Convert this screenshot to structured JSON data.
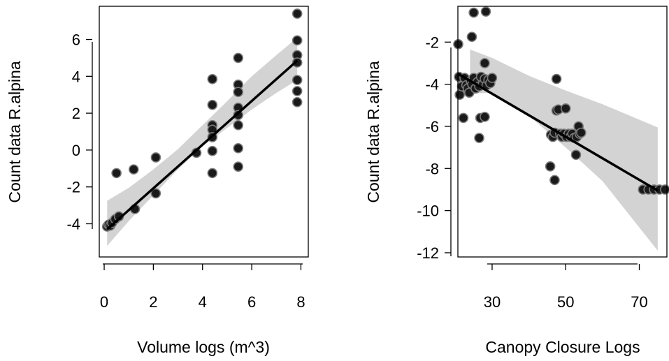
{
  "chart_data": [
    {
      "type": "scatter",
      "title": "",
      "xlabel": "Volume logs (m^3)",
      "ylabel": "Count data R.alpina",
      "xlim": [
        -0.2,
        8.3
      ],
      "ylim": [
        -5.8,
        7.8
      ],
      "xticks": [
        0,
        2,
        4,
        6,
        8
      ],
      "yticks": [
        -4,
        -2,
        0,
        2,
        4,
        6
      ],
      "grid": false,
      "legend": "none",
      "colors": {
        "point_fill": "#1a1a1a",
        "point_stroke": "#7a7a7a",
        "line": "#000000",
        "band": "#d3d3d3"
      },
      "points": [
        {
          "x": 0.12,
          "y": -4.15
        },
        {
          "x": 0.18,
          "y": -4.05
        },
        {
          "x": 0.25,
          "y": -4.1
        },
        {
          "x": 0.32,
          "y": -3.95
        },
        {
          "x": 0.45,
          "y": -3.75
        },
        {
          "x": 0.6,
          "y": -3.6
        },
        {
          "x": 0.5,
          "y": -1.25
        },
        {
          "x": 1.2,
          "y": -1.05
        },
        {
          "x": 1.25,
          "y": -3.2
        },
        {
          "x": 2.1,
          "y": -0.4
        },
        {
          "x": 2.1,
          "y": -2.35
        },
        {
          "x": 3.75,
          "y": -0.15
        },
        {
          "x": 4.4,
          "y": 3.85
        },
        {
          "x": 4.4,
          "y": 2.45
        },
        {
          "x": 4.4,
          "y": 1.35
        },
        {
          "x": 4.4,
          "y": 1.1
        },
        {
          "x": 4.4,
          "y": 0.7
        },
        {
          "x": 4.4,
          "y": -0.05
        },
        {
          "x": 4.4,
          "y": -1.25
        },
        {
          "x": 5.45,
          "y": 5.0
        },
        {
          "x": 5.45,
          "y": 3.55
        },
        {
          "x": 5.45,
          "y": 3.15
        },
        {
          "x": 5.45,
          "y": 2.3
        },
        {
          "x": 5.45,
          "y": 1.9
        },
        {
          "x": 5.45,
          "y": 1.35
        },
        {
          "x": 5.45,
          "y": 0.1
        },
        {
          "x": 5.45,
          "y": -0.9
        },
        {
          "x": 7.85,
          "y": 7.4
        },
        {
          "x": 7.85,
          "y": 5.95
        },
        {
          "x": 7.85,
          "y": 5.15
        },
        {
          "x": 7.85,
          "y": 4.75
        },
        {
          "x": 7.85,
          "y": 3.8
        },
        {
          "x": 7.85,
          "y": 3.2
        },
        {
          "x": 7.85,
          "y": 2.6
        }
      ],
      "fit_line": [
        {
          "x": 0.12,
          "y": -4.3
        },
        {
          "x": 7.85,
          "y": 4.85
        }
      ],
      "confidence_band": {
        "x": [
          0.12,
          1.0,
          2.0,
          3.0,
          4.0,
          5.0,
          6.0,
          7.0,
          7.85
        ],
        "lower": [
          -5.2,
          -3.85,
          -2.45,
          -1.05,
          0.2,
          1.2,
          2.2,
          3.1,
          3.8
        ],
        "upper": [
          -2.75,
          -2.05,
          -1.05,
          0.05,
          1.35,
          2.65,
          4.0,
          5.15,
          6.1
        ]
      }
    },
    {
      "type": "scatter",
      "title": "",
      "xlabel": "Canopy Closure Logs",
      "ylabel": "Count data R.alpina",
      "xlim": [
        20.7,
        77.5
      ],
      "ylim": [
        -12.2,
        -0.3
      ],
      "xticks": [
        30,
        50,
        70
      ],
      "yticks": [
        -12,
        -10,
        -8,
        -6,
        -4,
        -2
      ],
      "grid": false,
      "legend": "none",
      "colors": {
        "point_fill": "#1a1a1a",
        "point_stroke": "#7a7a7a",
        "line": "#000000",
        "band": "#d3d3d3"
      },
      "points": [
        {
          "x": 20.8,
          "y": -2.1
        },
        {
          "x": 21.0,
          "y": -3.65
        },
        {
          "x": 21.2,
          "y": -4.5
        },
        {
          "x": 21.8,
          "y": -4.1
        },
        {
          "x": 22.2,
          "y": -5.6
        },
        {
          "x": 22.5,
          "y": -3.7
        },
        {
          "x": 23.0,
          "y": -4.05
        },
        {
          "x": 23.4,
          "y": -4.2
        },
        {
          "x": 23.8,
          "y": -4.4
        },
        {
          "x": 24.2,
          "y": -3.85
        },
        {
          "x": 24.6,
          "y": -4.0
        },
        {
          "x": 25.0,
          "y": -3.7
        },
        {
          "x": 25.5,
          "y": -4.2
        },
        {
          "x": 26.0,
          "y": -3.9
        },
        {
          "x": 26.5,
          "y": -4.1
        },
        {
          "x": 27.0,
          "y": -3.65
        },
        {
          "x": 27.5,
          "y": -4.0
        },
        {
          "x": 28.0,
          "y": -3.75
        },
        {
          "x": 28.5,
          "y": -4.05
        },
        {
          "x": 29.0,
          "y": -3.8
        },
        {
          "x": 29.5,
          "y": -3.95
        },
        {
          "x": 30.0,
          "y": -3.7
        },
        {
          "x": 24.5,
          "y": -1.75
        },
        {
          "x": 25.0,
          "y": -0.6
        },
        {
          "x": 28.3,
          "y": -0.55
        },
        {
          "x": 28.0,
          "y": -3.0
        },
        {
          "x": 26.8,
          "y": -5.6
        },
        {
          "x": 26.5,
          "y": -6.55
        },
        {
          "x": 28.0,
          "y": -5.55
        },
        {
          "x": 45.8,
          "y": -7.9
        },
        {
          "x": 47.0,
          "y": -8.55
        },
        {
          "x": 46.0,
          "y": -6.4
        },
        {
          "x": 46.5,
          "y": -6.5
        },
        {
          "x": 47.0,
          "y": -6.3
        },
        {
          "x": 47.5,
          "y": -3.75
        },
        {
          "x": 47.5,
          "y": -5.25
        },
        {
          "x": 48.0,
          "y": -5.2
        },
        {
          "x": 48.5,
          "y": -6.35
        },
        {
          "x": 49.0,
          "y": -6.5
        },
        {
          "x": 49.5,
          "y": -6.35
        },
        {
          "x": 50.0,
          "y": -5.15
        },
        {
          "x": 50.2,
          "y": -6.5
        },
        {
          "x": 50.8,
          "y": -6.35
        },
        {
          "x": 51.3,
          "y": -6.5
        },
        {
          "x": 51.8,
          "y": -6.35
        },
        {
          "x": 52.3,
          "y": -6.55
        },
        {
          "x": 52.8,
          "y": -7.35
        },
        {
          "x": 53.0,
          "y": -6.5
        },
        {
          "x": 53.5,
          "y": -6.0
        },
        {
          "x": 53.8,
          "y": -6.35
        },
        {
          "x": 54.2,
          "y": -6.3
        },
        {
          "x": 71.0,
          "y": -9.0
        },
        {
          "x": 72.5,
          "y": -9.0
        },
        {
          "x": 74.0,
          "y": -9.0
        },
        {
          "x": 75.5,
          "y": -9.0
        },
        {
          "x": 77.0,
          "y": -9.0
        }
      ],
      "fit_line": [
        {
          "x": 20.7,
          "y": -3.5
        },
        {
          "x": 75.0,
          "y": -9.05
        }
      ],
      "confidence_band": {
        "x": [
          24.0,
          30.0,
          40.0,
          50.0,
          60.0,
          75.0
        ],
        "lower": [
          -4.45,
          -4.4,
          -5.5,
          -7.0,
          -8.6,
          -11.9
        ],
        "upper": [
          -2.35,
          -2.75,
          -3.6,
          -4.3,
          -4.95,
          -6.05
        ]
      }
    }
  ]
}
